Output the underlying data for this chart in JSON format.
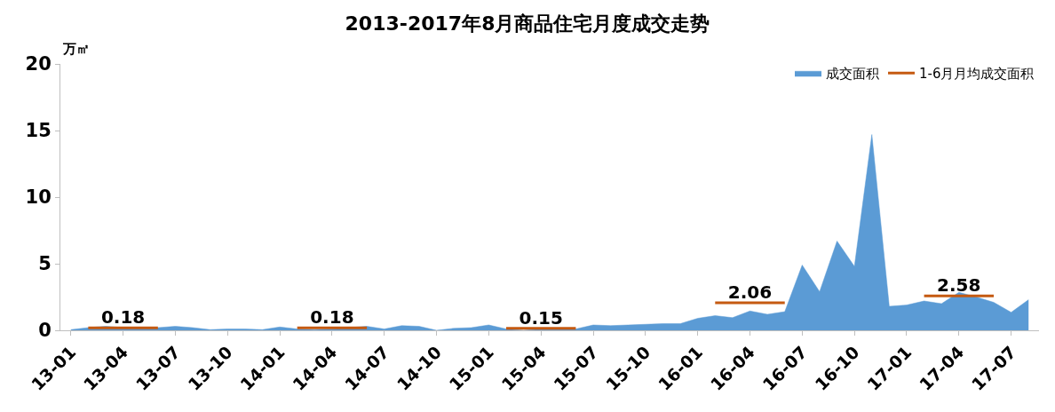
{
  "chart_data": {
    "type": "area",
    "title": "2013-2017年8月商品住宅月度成交走势",
    "ylabel": "万㎡",
    "categories": [
      "13-01",
      null,
      null,
      "13-04",
      null,
      null,
      "13-07",
      null,
      null,
      "13-10",
      null,
      null,
      "14-01",
      null,
      null,
      "14-04",
      null,
      null,
      "14-07",
      null,
      null,
      "14-10",
      null,
      null,
      "15-01",
      null,
      null,
      "15-04",
      null,
      null,
      "15-07",
      null,
      null,
      "15-10",
      null,
      null,
      "16-01",
      null,
      null,
      "16-04",
      null,
      null,
      "16-07",
      null,
      null,
      "16-10",
      null,
      null,
      "17-01",
      null,
      null,
      "17-04",
      null,
      null,
      "17-07",
      null
    ],
    "series": [
      {
        "name": "成交面积",
        "color": "#5b9bd5",
        "values": [
          0.05,
          0.2,
          0.3,
          0.2,
          0.2,
          0.2,
          0.3,
          0.2,
          0.05,
          0.1,
          0.1,
          0.05,
          0.25,
          0.1,
          0.05,
          0.1,
          0.2,
          0.3,
          0.1,
          0.35,
          0.3,
          0.0,
          0.15,
          0.2,
          0.4,
          0.1,
          0.0,
          0.1,
          0.1,
          0.1,
          0.4,
          0.35,
          0.4,
          0.45,
          0.5,
          0.5,
          0.9,
          1.1,
          0.95,
          1.45,
          1.2,
          1.4,
          4.9,
          2.9,
          6.7,
          4.8,
          14.7,
          1.8,
          1.9,
          2.2,
          2.0,
          2.85,
          2.5,
          2.1,
          1.35,
          2.3
        ]
      },
      {
        "name": "1-6月月均成交面积",
        "type": "line",
        "color": "#c55a11",
        "values": [
          null,
          0.18,
          0.18,
          0.18,
          0.18,
          0.18,
          null,
          null,
          null,
          null,
          null,
          null,
          null,
          0.18,
          0.18,
          0.18,
          0.18,
          0.18,
          null,
          null,
          null,
          null,
          null,
          null,
          null,
          0.15,
          0.15,
          0.15,
          0.15,
          0.15,
          null,
          null,
          null,
          null,
          null,
          null,
          null,
          2.06,
          2.06,
          2.06,
          2.06,
          2.06,
          null,
          null,
          null,
          null,
          null,
          null,
          null,
          2.58,
          2.58,
          2.58,
          2.58,
          2.58,
          null,
          null
        ],
        "value_labels": [
          null,
          null,
          null,
          "0.18",
          null,
          null,
          null,
          null,
          null,
          null,
          null,
          null,
          null,
          null,
          null,
          "0.18",
          null,
          null,
          null,
          null,
          null,
          null,
          null,
          null,
          null,
          null,
          null,
          "0.15",
          null,
          null,
          null,
          null,
          null,
          null,
          null,
          null,
          null,
          null,
          null,
          "2.06",
          null,
          null,
          null,
          null,
          null,
          null,
          null,
          null,
          null,
          null,
          null,
          "2.58",
          null,
          null,
          null,
          null
        ]
      }
    ],
    "ylim": [
      0,
      20
    ],
    "yticks": [
      0,
      5,
      10,
      15,
      20
    ],
    "grid": false,
    "legend": "top right",
    "marker": "none",
    "line_style": "solid"
  }
}
